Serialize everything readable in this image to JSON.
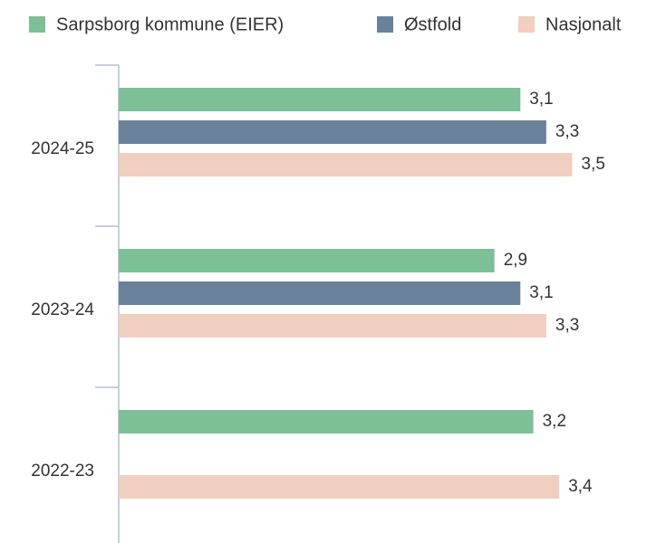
{
  "chart_data": {
    "type": "barh",
    "categories": [
      "2024-25",
      "2023-24",
      "2022-23"
    ],
    "series": [
      {
        "name": "Sarpsborg kommune (EIER)",
        "color": "#7dbf96",
        "values": [
          3.1,
          2.9,
          3.2
        ],
        "value_labels": [
          "3,1",
          "2,9",
          "3,2"
        ]
      },
      {
        "name": "Østfold",
        "color": "#6a8299",
        "values": [
          3.3,
          3.1,
          null
        ],
        "value_labels": [
          "3,3",
          "3,1",
          null
        ]
      },
      {
        "name": "Nasjonalt",
        "color": "#f0cfc0",
        "values": [
          3.5,
          3.3,
          3.4
        ],
        "value_labels": [
          "3,5",
          "3,3",
          "3,4"
        ]
      }
    ],
    "xlim": [
      0,
      4
    ],
    "legend": "top"
  }
}
